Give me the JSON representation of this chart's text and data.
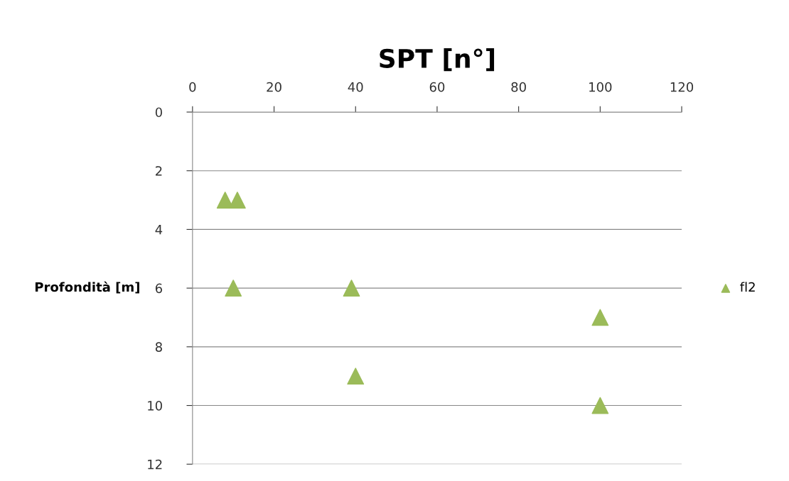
{
  "chart_data": {
    "type": "scatter",
    "title": "SPT [n°]",
    "ylabel": "Profondità [m]",
    "series": [
      {
        "name": "fl2",
        "color": "#9bbb59",
        "x": [
          8,
          11,
          10,
          39,
          100,
          40,
          100
        ],
        "values": [
          3,
          3,
          6,
          6,
          7,
          9,
          10
        ]
      }
    ],
    "xlim": [
      0,
      120
    ],
    "xticks": [
      0,
      20,
      40,
      60,
      80,
      100,
      120
    ],
    "ylim": [
      12,
      0
    ],
    "yticks": [
      0,
      2,
      4,
      6,
      8,
      10,
      12
    ],
    "grid": "y",
    "legend": "right",
    "marker": "triangle"
  }
}
